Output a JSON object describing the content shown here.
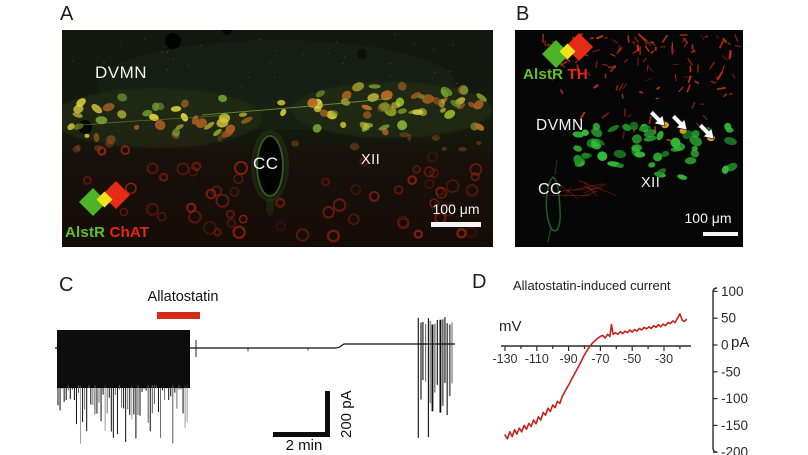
{
  "panels": {
    "a": {
      "label": "A",
      "regions": {
        "dvmn": "DVMN",
        "cc": "CC",
        "xii": "XII"
      },
      "legend": {
        "green_label": "AlstR",
        "red_label": "ChAT"
      },
      "scale_bar_label": "100 μm",
      "colors": {
        "legend_green": "#63c02c",
        "legend_red": "#ea2517",
        "diamond_green": "#4db427",
        "diamond_red": "#e62b17",
        "diamond_overlap": "#efe31b",
        "cell_yellow": "#cfc337",
        "cell_green": "#7fb33a",
        "cell_orange": "#bb6a24",
        "cell_red_ring": "#9c2212",
        "background": "#11150c"
      }
    },
    "b": {
      "label": "B",
      "regions": {
        "dvmn": "DVMN",
        "cc": "CC",
        "xii": "XII"
      },
      "legend": {
        "green_label": "AlstR",
        "red_label": "TH"
      },
      "scale_bar_label": "100 μm",
      "colors": {
        "legend_green": "#63c02c",
        "legend_red": "#ea2517",
        "diamond_green": "#4db427",
        "diamond_red": "#e62b17",
        "diamond_overlap": "#efe31b",
        "fiber_red": "#c22a12",
        "cell_green": "#33bb38",
        "cell_yellow": "#d9a91c",
        "background": "#060606"
      }
    },
    "c": {
      "label": "C",
      "annotation": "Allatostatin",
      "annotation_bar_color": "#d42b1b",
      "x_scale_label": "2 min",
      "y_scale_label": "200 pA",
      "trace_color": "#0d0d0d"
    },
    "d": {
      "label": "D",
      "title": "Allatostatin-induced current",
      "x_axis_label": "mV",
      "y_axis_label": "pA",
      "x_tick_labels": [
        "-130",
        "-110",
        "-90",
        "-70",
        "-50",
        "-30"
      ],
      "y_tick_labels": [
        "100",
        "50",
        "0",
        "-50",
        "-100",
        "-150",
        "-200"
      ],
      "curve_color": "#c8221b"
    }
  },
  "chart_data": [
    {
      "type": "line",
      "panel": "C",
      "annotation": "Allatostatin",
      "x_scale_bar": "2 min",
      "y_scale_bar": "200 pA",
      "y_unit": "pA"
    },
    {
      "type": "line",
      "panel": "D",
      "title": "Allatostatin-induced current",
      "xlabel": "mV",
      "ylabel": "pA",
      "x_ticks": [
        -130,
        -120,
        -110,
        -100,
        -90,
        -80,
        -70,
        -60,
        -50,
        -40,
        -30,
        -20
      ],
      "x_labeled_ticks": [
        -130,
        -110,
        -90,
        -70,
        -50,
        -30
      ],
      "y_ticks": [
        100,
        50,
        0,
        -50,
        -100,
        -150,
        -200
      ],
      "xlim": [
        -132,
        -13
      ],
      "ylim": [
        -200,
        100
      ],
      "series": [
        {
          "name": "Allatostatin-induced current",
          "color": "#c8221b",
          "points": [
            [
              -130,
              -168
            ],
            [
              -128.5,
              -175
            ],
            [
              -127,
              -162
            ],
            [
              -125.5,
              -171
            ],
            [
              -124,
              -158
            ],
            [
              -122.5,
              -166
            ],
            [
              -121,
              -155
            ],
            [
              -119.5,
              -162
            ],
            [
              -118,
              -150
            ],
            [
              -116.5,
              -157
            ],
            [
              -115,
              -146
            ],
            [
              -113.5,
              -152
            ],
            [
              -112,
              -140
            ],
            [
              -110.5,
              -147
            ],
            [
              -109,
              -134
            ],
            [
              -107.5,
              -140
            ],
            [
              -106,
              -126
            ],
            [
              -104.5,
              -131
            ],
            [
              -103,
              -118
            ],
            [
              -101.5,
              -124
            ],
            [
              -100,
              -112
            ],
            [
              -98.5,
              -117
            ],
            [
              -97,
              -105
            ],
            [
              -95.5,
              -109
            ],
            [
              -94,
              -96
            ],
            [
              -92.5,
              -88
            ],
            [
              -91,
              -80
            ],
            [
              -89.5,
              -72
            ],
            [
              -88,
              -63
            ],
            [
              -86.5,
              -55
            ],
            [
              -85,
              -47
            ],
            [
              -83.5,
              -39
            ],
            [
              -82,
              -30
            ],
            [
              -80.5,
              -21
            ],
            [
              -79,
              -13
            ],
            [
              -77.5,
              -6
            ],
            [
              -76,
              0
            ],
            [
              -74.5,
              5
            ],
            [
              -73,
              9
            ],
            [
              -71.5,
              13
            ],
            [
              -70,
              16
            ],
            [
              -68.5,
              18
            ],
            [
              -67,
              13
            ],
            [
              -65.5,
              20
            ],
            [
              -64,
              16
            ],
            [
              -63,
              38
            ],
            [
              -62,
              20
            ],
            [
              -60.5,
              23
            ],
            [
              -59,
              20
            ],
            [
              -57.5,
              25
            ],
            [
              -56,
              21
            ],
            [
              -54.5,
              26
            ],
            [
              -53,
              23
            ],
            [
              -51.5,
              28
            ],
            [
              -50,
              24
            ],
            [
              -48.5,
              29
            ],
            [
              -47,
              26
            ],
            [
              -45.5,
              31
            ],
            [
              -44,
              28
            ],
            [
              -42.5,
              33
            ],
            [
              -41,
              30
            ],
            [
              -39.5,
              34
            ],
            [
              -38,
              31
            ],
            [
              -36.5,
              36
            ],
            [
              -35,
              33
            ],
            [
              -33.5,
              38
            ],
            [
              -32,
              34
            ],
            [
              -30.5,
              39
            ],
            [
              -29,
              36
            ],
            [
              -27.5,
              42
            ],
            [
              -26,
              40
            ],
            [
              -24.5,
              45
            ],
            [
              -23,
              42
            ],
            [
              -21.5,
              50
            ],
            [
              -20,
              58
            ],
            [
              -18.5,
              46
            ],
            [
              -17,
              44
            ],
            [
              -16,
              48
            ]
          ]
        }
      ]
    }
  ]
}
